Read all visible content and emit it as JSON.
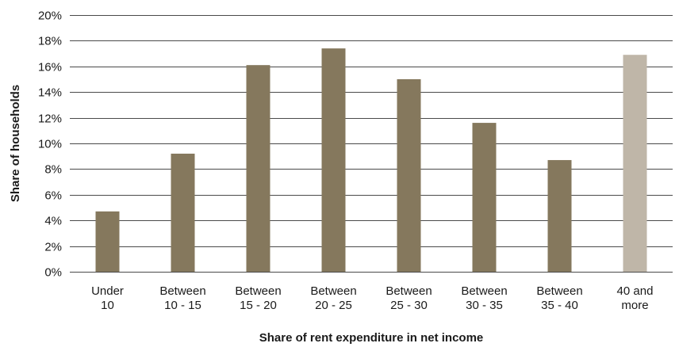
{
  "chart_data": {
    "type": "bar",
    "categories": [
      [
        "Under",
        "10"
      ],
      [
        "Between",
        "10 - 15"
      ],
      [
        "Between",
        "15 - 20"
      ],
      [
        "Between",
        "20 - 25"
      ],
      [
        "Between",
        "25 - 30"
      ],
      [
        "Between",
        "30 - 35"
      ],
      [
        "Between",
        "35 - 40"
      ],
      [
        "40 and",
        "more"
      ]
    ],
    "values": [
      4.7,
      9.2,
      16.1,
      17.4,
      15.0,
      11.6,
      8.7,
      16.9
    ],
    "colors": [
      "#85785d",
      "#85785d",
      "#85785d",
      "#85785d",
      "#85785d",
      "#85785d",
      "#85785d",
      "#bfb6a8"
    ],
    "xlabel": "Share of rent expenditure in net income",
    "ylabel": "Share of households",
    "ylim": [
      0,
      20
    ],
    "ytick_step": 2,
    "ytick_suffix": "%",
    "grid": true,
    "legend": "none"
  }
}
